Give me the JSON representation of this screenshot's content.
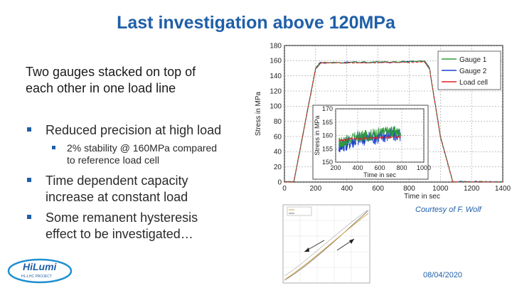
{
  "slide": {
    "title": "Last investigation above 120MPa",
    "intro_line1": "Two gauges stacked on top of",
    "intro_line2": "each other in one load line",
    "bullets": [
      {
        "line1": "Reduced precision at high load",
        "line2": ""
      },
      {
        "line1": "Time dependent capacity",
        "line2": "increase at constant load"
      },
      {
        "line1": "Some remanent hysteresis",
        "line2": "effect to be investigated…"
      }
    ],
    "sub_bullet": {
      "line1": "2% stability @ 160MPa compared",
      "line2": "to reference load cell"
    },
    "courtesy": "Courtesy of F. Wolf",
    "date": "08/04/2020",
    "logo_name": "HiLumi",
    "logo_sub": "HL-LHC PROJECT"
  },
  "chart_data": [
    {
      "type": "line",
      "xlabel": "Time in sec",
      "ylabel": "Stress in MPa",
      "xlim": [
        0,
        1400
      ],
      "ylim": [
        0,
        180
      ],
      "x_ticks": [
        "0",
        "200",
        "400",
        "600",
        "800",
        "1000",
        "1200",
        "1400"
      ],
      "y_ticks": [
        "0",
        "20",
        "40",
        "60",
        "80",
        "100",
        "120",
        "140",
        "160",
        "180"
      ],
      "grid": true,
      "legend_position": "top-right",
      "series": [
        {
          "name": "Gauge 1",
          "color": "#2e9a3c",
          "x": [
            0,
            60,
            200,
            230,
            900,
            930,
            1000,
            1080,
            1400
          ],
          "y": [
            0,
            0,
            150,
            157,
            159,
            150,
            60,
            0,
            0
          ]
        },
        {
          "name": "Gauge 2",
          "color": "#1c3fd1",
          "x": [
            0,
            60,
            200,
            230,
            900,
            930,
            1000,
            1080,
            1400
          ],
          "y": [
            0,
            0,
            150,
            157,
            159,
            150,
            60,
            0,
            0
          ]
        },
        {
          "name": "Load cell",
          "color": "#e02020",
          "x": [
            0,
            60,
            200,
            230,
            900,
            930,
            1000,
            1080,
            1400
          ],
          "y": [
            0,
            0,
            150,
            157,
            158,
            150,
            60,
            0,
            0
          ]
        }
      ]
    },
    {
      "type": "line",
      "xlabel": "Time in sec",
      "ylabel": "Stress in MPa",
      "xlim": [
        200,
        1000
      ],
      "ylim": [
        150,
        170
      ],
      "x_ticks": [
        "200",
        "400",
        "600",
        "800",
        "1000"
      ],
      "y_ticks": [
        "150",
        "155",
        "160",
        "165",
        "170"
      ],
      "grid": true,
      "series": [
        {
          "name": "Gauge 1",
          "color": "#2e9a3c",
          "x": [
            230,
            300,
            400,
            500,
            600,
            700,
            790
          ],
          "y": [
            157,
            158,
            159.5,
            160,
            161,
            161.5,
            161
          ]
        },
        {
          "name": "Gauge 2",
          "color": "#1c3fd1",
          "x": [
            230,
            300,
            400,
            500,
            600,
            700,
            790
          ],
          "y": [
            156,
            157,
            158.5,
            159,
            159.5,
            160.5,
            160
          ]
        },
        {
          "name": "Load cell",
          "color": "#e02020",
          "x": [
            230,
            300,
            400,
            500,
            600,
            700,
            790
          ],
          "y": [
            158,
            158.5,
            158.8,
            159,
            159.2,
            159.4,
            159.5
          ]
        }
      ]
    }
  ]
}
